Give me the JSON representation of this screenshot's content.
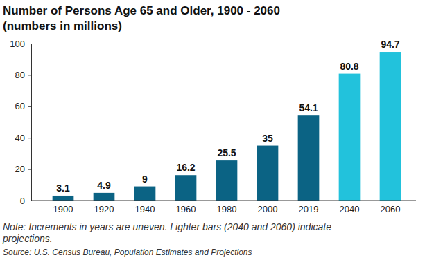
{
  "chart_data": {
    "type": "bar",
    "title": "Number of Persons Age 65 and Older, 1900 - 2060",
    "subtitle": "(numbers in millions)",
    "categories": [
      "1900",
      "1920",
      "1940",
      "1960",
      "1980",
      "2000",
      "2019",
      "2040",
      "2060"
    ],
    "values": [
      3.1,
      4.9,
      9,
      16.2,
      25.5,
      35,
      54.1,
      80.8,
      94.7
    ],
    "colors": [
      "#0b6384",
      "#0b6384",
      "#0b6384",
      "#0b6384",
      "#0b6384",
      "#0b6384",
      "#0b6384",
      "#22c2dc",
      "#22c2dc"
    ],
    "ylim": [
      0,
      100
    ],
    "yticks": [
      0,
      20,
      40,
      60,
      80,
      100
    ],
    "grid": false,
    "data_labels": true,
    "notes": [
      "Note: Increments in years are uneven. Lighter bars (2040 and 2060) indicate",
      "projections."
    ],
    "source": "Source: U.S. Census Bureau, Population Estimates and Projections"
  }
}
